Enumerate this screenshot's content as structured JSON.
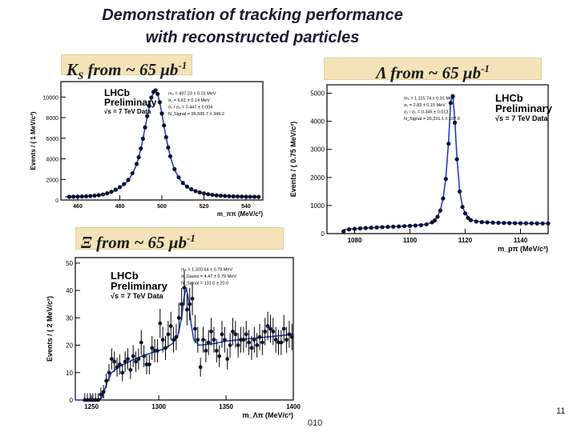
{
  "slide": {
    "title_line1": "Demonstration of tracking performance",
    "title_line2": "with reconstructed particles",
    "page_number": "11",
    "footer_fragment": "010"
  },
  "labels": {
    "ks": "K",
    "ks_sub": "S",
    "ks_rest": " from ~ 65 μb",
    "lambda": "Λ from ~ 65 μb",
    "xi": "Ξ from ~ 65 μb",
    "sup": "-1"
  },
  "chart_data": [
    {
      "type": "scatter",
      "id": "ks",
      "ylabel": "Events / ( 1 MeV/c²)",
      "xlabel": "m_ππ (MeV/c²)",
      "xlim": [
        452,
        548
      ],
      "ylim": [
        0,
        11500
      ],
      "xticks": [
        460,
        480,
        500,
        520,
        540
      ],
      "yticks": [
        0,
        2000,
        4000,
        6000,
        8000,
        10000
      ],
      "legend_lines": [
        "LHCb",
        "Preliminary",
        "√s = 7 TeV Data"
      ],
      "fit_params": [
        "m₀ = 497.23 ± 0.01 MeV",
        "σ₁ = 6.61 ± 0.14 MeV",
        "σ₁ / σ₂ = 0.447 ± 0.004",
        "N_Signal = 99,595.7 ± 349.2"
      ],
      "x": [
        456,
        458,
        460,
        462,
        464,
        466,
        468,
        470,
        472,
        474,
        476,
        478,
        480,
        482,
        484,
        486,
        488,
        489,
        490,
        491,
        492,
        493,
        494,
        495,
        496,
        497,
        498,
        499,
        500,
        501,
        502,
        503,
        504,
        506,
        508,
        510,
        512,
        514,
        516,
        518,
        520,
        522,
        524,
        526,
        528,
        530,
        532,
        534,
        536,
        538,
        540,
        542,
        544,
        546
      ],
      "y": [
        310,
        320,
        330,
        340,
        360,
        390,
        420,
        470,
        540,
        650,
        800,
        1000,
        1250,
        1550,
        1950,
        2600,
        3500,
        4150,
        5000,
        5950,
        7050,
        8150,
        9150,
        9950,
        10500,
        10650,
        10300,
        9500,
        8400,
        7250,
        6100,
        5100,
        4250,
        3000,
        2200,
        1650,
        1300,
        1050,
        870,
        740,
        640,
        560,
        500,
        450,
        420,
        390,
        370,
        350,
        340,
        330,
        320,
        315,
        310,
        305
      ],
      "fit_x": [
        454,
        458,
        462,
        466,
        470,
        474,
        478,
        482,
        484,
        486,
        488,
        490,
        492,
        494,
        495,
        496,
        497,
        498,
        499,
        500,
        502,
        504,
        506,
        508,
        510,
        514,
        518,
        522,
        526,
        530,
        536,
        542,
        546
      ],
      "fit_y": [
        300,
        320,
        340,
        380,
        460,
        620,
        950,
        1500,
        1900,
        2550,
        3450,
        4950,
        7000,
        9100,
        9900,
        10450,
        10600,
        10250,
        9450,
        8350,
        6050,
        4200,
        2950,
        2150,
        1600,
        1000,
        710,
        550,
        440,
        380,
        335,
        310,
        300
      ]
    },
    {
      "type": "scatter",
      "id": "lambda",
      "ylabel": "Events / ( 0.75 MeV/c²)",
      "xlabel": "m_pπ (MeV/c²)",
      "xlim": [
        1070,
        1150
      ],
      "ylim": [
        0,
        5300
      ],
      "xticks": [
        1080,
        1100,
        1120,
        1140
      ],
      "yticks": [
        0,
        1000,
        2000,
        3000,
        4000,
        5000
      ],
      "legend_lines": [
        "LHCb",
        "Preliminary",
        "√s = 7 TeV Data"
      ],
      "fit_params": [
        "m₀ = 1,115.74 ± 0.01 MeV",
        "σ₁ = 2.83 ± 0.15 MeV",
        "σ₁ / σ₀ = 0.345 ± 0.013",
        "N_Signal = 20,231.1 ± 187.9"
      ],
      "x": [
        1076,
        1078,
        1080,
        1082,
        1084,
        1086,
        1088,
        1090,
        1092,
        1094,
        1096,
        1098,
        1100,
        1102,
        1104,
        1106,
        1108,
        1109,
        1110,
        1111,
        1112,
        1113,
        1114,
        1114.75,
        1115.5,
        1116.25,
        1117,
        1118,
        1119,
        1120,
        1121,
        1122,
        1124,
        1126,
        1128,
        1130,
        1132,
        1134,
        1136,
        1138,
        1140,
        1142,
        1144,
        1146,
        1148,
        1150
      ],
      "y": [
        75,
        150,
        170,
        185,
        200,
        210,
        220,
        230,
        240,
        245,
        255,
        265,
        275,
        285,
        300,
        330,
        400,
        470,
        600,
        820,
        1250,
        1950,
        3200,
        4650,
        4900,
        3950,
        2650,
        1500,
        950,
        720,
        560,
        480,
        430,
        410,
        400,
        390,
        385,
        380,
        375,
        372,
        370,
        368,
        366,
        364,
        362,
        360
      ],
      "fit_x": [
        1076,
        1080,
        1090,
        1100,
        1106,
        1108,
        1110,
        1111,
        1112,
        1113,
        1114,
        1114.75,
        1115.5,
        1116.25,
        1117,
        1118,
        1119,
        1120,
        1122,
        1126,
        1130,
        1140,
        1150
      ],
      "fit_y": [
        140,
        175,
        230,
        275,
        330,
        400,
        610,
        830,
        1250,
        1980,
        3300,
        4700,
        4950,
        4000,
        2700,
        1520,
        960,
        730,
        490,
        410,
        390,
        370,
        360
      ]
    },
    {
      "type": "scatter",
      "id": "xi",
      "ylabel": "Events / ( 2 MeV/c²)",
      "xlabel": "m_Λπ (MeV/c²)",
      "xlim": [
        1238,
        1400
      ],
      "ylim": [
        0,
        52
      ],
      "xticks": [
        1250,
        1300,
        1350,
        1400
      ],
      "yticks": [
        0,
        10,
        20,
        30,
        40,
        50
      ],
      "legend_lines": [
        "LHCb",
        "Preliminary",
        "√s = 7 TeV Data"
      ],
      "fit_params": [
        "m₀ = 1,320.54 ± 0.79 MeV",
        "σ_Gauss = 4.47 ± 0.79 MeV",
        "N_Signal = 131.0 ± 20.0"
      ],
      "x": [
        1245,
        1247,
        1249,
        1251,
        1253,
        1255,
        1257,
        1259,
        1261,
        1263,
        1265,
        1267,
        1269,
        1271,
        1273,
        1275,
        1277,
        1279,
        1281,
        1283,
        1285,
        1287,
        1289,
        1291,
        1293,
        1295,
        1297,
        1299,
        1301,
        1303,
        1305,
        1307,
        1309,
        1311,
        1313,
        1315,
        1317,
        1319,
        1321,
        1323,
        1325,
        1327,
        1329,
        1331,
        1333,
        1335,
        1337,
        1339,
        1341,
        1343,
        1345,
        1347,
        1349,
        1351,
        1353,
        1355,
        1357,
        1359,
        1361,
        1363,
        1365,
        1367,
        1369,
        1371,
        1373,
        1375,
        1377,
        1379,
        1381,
        1383,
        1385,
        1387,
        1389,
        1391,
        1393,
        1395,
        1397,
        1399
      ],
      "y": [
        0,
        0,
        0,
        0,
        0,
        0,
        2,
        3,
        7,
        10,
        15,
        14,
        12,
        13,
        10,
        14,
        15,
        11,
        16,
        14,
        15,
        21,
        16,
        13,
        13,
        19,
        18,
        18,
        28,
        22,
        19,
        24,
        27,
        22,
        23,
        30,
        35,
        41,
        33,
        35,
        37,
        26,
        22,
        12,
        22,
        18,
        21,
        25,
        22,
        18,
        16,
        24,
        22,
        15,
        20,
        25,
        24,
        20,
        22,
        22,
        24,
        21,
        19,
        22,
        20,
        23,
        21,
        25,
        27,
        26,
        25,
        22,
        21,
        21,
        26,
        22,
        24,
        23
      ],
      "fit_x": [
        1238,
        1248,
        1255,
        1258,
        1260,
        1262,
        1265,
        1270,
        1280,
        1290,
        1300,
        1305,
        1310,
        1314,
        1317,
        1319,
        1320.5,
        1322,
        1324,
        1326,
        1330,
        1340,
        1350,
        1360,
        1370,
        1380,
        1390,
        1400
      ],
      "fit_y": [
        0,
        0,
        0,
        1,
        4,
        7,
        10,
        12,
        14.5,
        16.5,
        18,
        19,
        20.5,
        23,
        30,
        38,
        41,
        37,
        28,
        22,
        20,
        20.5,
        21.5,
        22,
        22.5,
        23,
        23.5,
        24
      ]
    }
  ]
}
